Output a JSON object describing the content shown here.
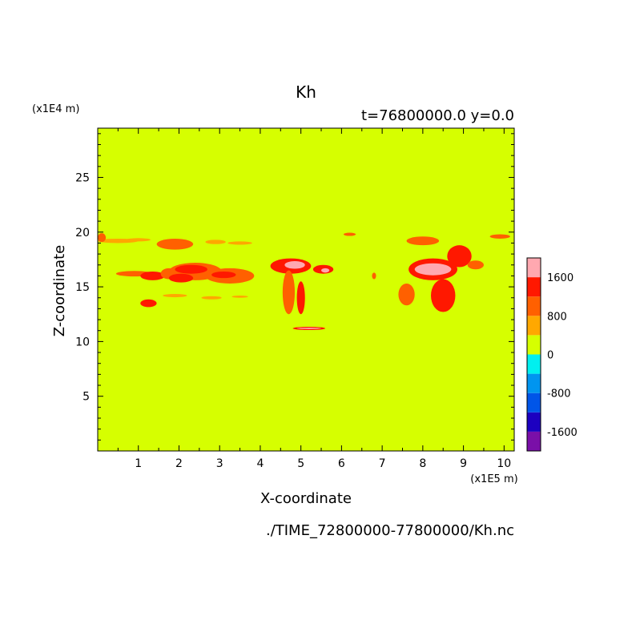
{
  "chart_data": {
    "type": "heatmap",
    "title": "Kh",
    "subtitle": "t=76800000.0 y=0.0",
    "xlabel": "X-coordinate",
    "ylabel": "Z-coordinate",
    "x_unit": "(x1E5 m)",
    "y_unit": "(x1E4 m)",
    "xlim": [
      0,
      10.25
    ],
    "ylim": [
      0,
      29.5
    ],
    "x_ticks": [
      1,
      2,
      3,
      4,
      5,
      6,
      7,
      8,
      9,
      10
    ],
    "y_ticks": [
      5,
      10,
      15,
      20,
      25
    ],
    "background_value": 0,
    "colorbar": {
      "levels": [
        -2000,
        -1600,
        -1200,
        -800,
        -400,
        0,
        400,
        800,
        1200,
        1600,
        2000
      ],
      "tick_labels": [
        "-1600",
        "-800",
        "0",
        "800",
        "1600"
      ],
      "tick_values": [
        -1600,
        -800,
        0,
        800,
        1600
      ],
      "colors": [
        "#7a0fa8",
        "#1c00c0",
        "#0055e8",
        "#0095f0",
        "#00f0f0",
        "#d6ff00",
        "#ffa800",
        "#ff6000",
        "#ff1800",
        "#ffa8b0"
      ]
    },
    "features": [
      {
        "x": 0.5,
        "z": 19.2,
        "dx": 0.5,
        "dz": 0.2,
        "level": 400
      },
      {
        "x": 1.0,
        "z": 19.3,
        "dx": 0.3,
        "dz": 0.15,
        "level": 400
      },
      {
        "x": 0.1,
        "z": 19.5,
        "dx": 0.1,
        "dz": 0.4,
        "level": 800
      },
      {
        "x": 1.9,
        "z": 18.9,
        "dx": 0.45,
        "dz": 0.5,
        "level": 800
      },
      {
        "x": 2.9,
        "z": 19.1,
        "dx": 0.25,
        "dz": 0.2,
        "level": 400
      },
      {
        "x": 3.5,
        "z": 19.0,
        "dx": 0.3,
        "dz": 0.15,
        "level": 400
      },
      {
        "x": 0.9,
        "z": 16.2,
        "dx": 0.45,
        "dz": 0.25,
        "level": 800
      },
      {
        "x": 1.35,
        "z": 16.0,
        "dx": 0.3,
        "dz": 0.4,
        "level": 1200
      },
      {
        "x": 1.75,
        "z": 16.2,
        "dx": 0.2,
        "dz": 0.5,
        "level": 800
      },
      {
        "x": 2.4,
        "z": 16.4,
        "dx": 0.65,
        "dz": 0.8,
        "level": 800
      },
      {
        "x": 2.3,
        "z": 16.6,
        "dx": 0.4,
        "dz": 0.4,
        "level": 1200
      },
      {
        "x": 3.25,
        "z": 16.0,
        "dx": 0.6,
        "dz": 0.7,
        "level": 800
      },
      {
        "x": 3.1,
        "z": 16.1,
        "dx": 0.3,
        "dz": 0.3,
        "level": 1200
      },
      {
        "x": 2.05,
        "z": 15.8,
        "dx": 0.3,
        "dz": 0.4,
        "level": 1200
      },
      {
        "x": 1.25,
        "z": 13.5,
        "dx": 0.2,
        "dz": 0.35,
        "level": 1200
      },
      {
        "x": 1.9,
        "z": 14.2,
        "dx": 0.3,
        "dz": 0.15,
        "level": 400
      },
      {
        "x": 2.8,
        "z": 14.0,
        "dx": 0.25,
        "dz": 0.15,
        "level": 400
      },
      {
        "x": 3.5,
        "z": 14.1,
        "dx": 0.2,
        "dz": 0.1,
        "level": 400
      },
      {
        "x": 4.75,
        "z": 16.9,
        "dx": 0.5,
        "dz": 0.7,
        "level": 1200
      },
      {
        "x": 4.85,
        "z": 17.0,
        "dx": 0.25,
        "dz": 0.35,
        "level": 1600
      },
      {
        "x": 4.7,
        "z": 14.5,
        "dx": 0.15,
        "dz": 2.0,
        "level": 800
      },
      {
        "x": 5.0,
        "z": 14.0,
        "dx": 0.1,
        "dz": 1.5,
        "level": 1200
      },
      {
        "x": 5.55,
        "z": 16.6,
        "dx": 0.25,
        "dz": 0.4,
        "level": 1200
      },
      {
        "x": 5.6,
        "z": 16.5,
        "dx": 0.1,
        "dz": 0.2,
        "level": 1600
      },
      {
        "x": 5.2,
        "z": 11.2,
        "dx": 0.4,
        "dz": 0.15,
        "level": 1200
      },
      {
        "x": 5.2,
        "z": 11.2,
        "dx": 0.3,
        "dz": 0.06,
        "level": 1600
      },
      {
        "x": 6.2,
        "z": 19.8,
        "dx": 0.15,
        "dz": 0.15,
        "level": 800
      },
      {
        "x": 6.8,
        "z": 16.0,
        "dx": 0.05,
        "dz": 0.3,
        "level": 800
      },
      {
        "x": 8.25,
        "z": 16.6,
        "dx": 0.6,
        "dz": 1.0,
        "level": 1200
      },
      {
        "x": 8.25,
        "z": 16.6,
        "dx": 0.45,
        "dz": 0.55,
        "level": 1600
      },
      {
        "x": 8.9,
        "z": 17.8,
        "dx": 0.3,
        "dz": 1.0,
        "level": 1200
      },
      {
        "x": 8.5,
        "z": 14.2,
        "dx": 0.3,
        "dz": 1.5,
        "level": 1200
      },
      {
        "x": 8.0,
        "z": 19.2,
        "dx": 0.4,
        "dz": 0.4,
        "level": 800
      },
      {
        "x": 7.6,
        "z": 14.3,
        "dx": 0.2,
        "dz": 1.0,
        "level": 800
      },
      {
        "x": 9.3,
        "z": 17.0,
        "dx": 0.2,
        "dz": 0.4,
        "level": 800
      },
      {
        "x": 9.9,
        "z": 19.6,
        "dx": 0.25,
        "dz": 0.2,
        "level": 800
      }
    ]
  },
  "footer": {
    "path": "./TIME_72800000-77800000/Kh.nc"
  }
}
